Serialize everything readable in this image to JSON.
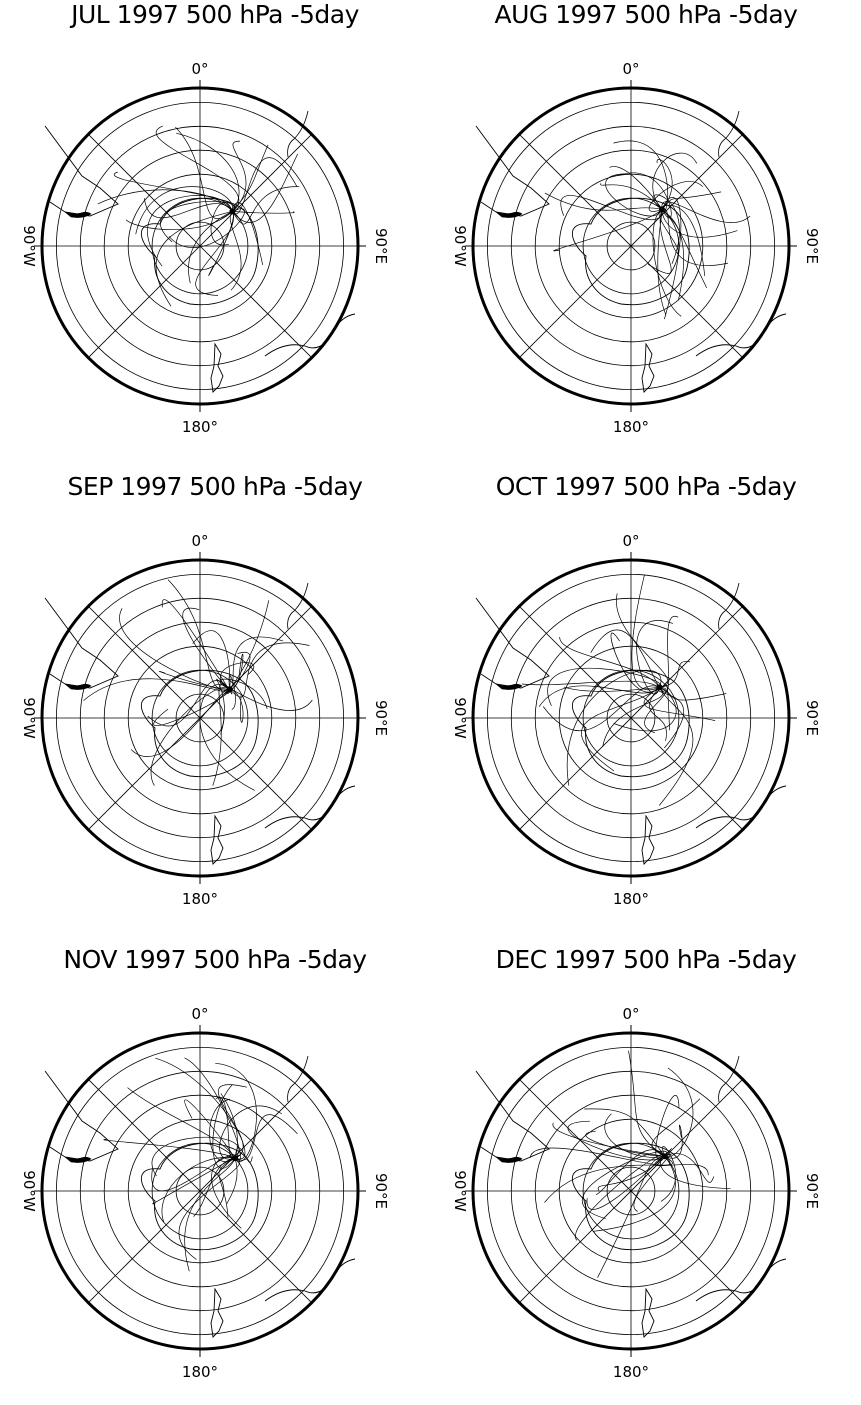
{
  "panels": [
    {
      "title": "JUL 1997 500 hPa -5day"
    },
    {
      "title": "AUG 1997 500 hPa -5day"
    },
    {
      "title": "SEP 1997 500 hPa -5day"
    },
    {
      "title": "OCT 1997 500 hPa -5day"
    },
    {
      "title": "NOV 1997 500 hPa -5day"
    },
    {
      "title": "DEC 1997 500 hPa -5day"
    }
  ],
  "map": {
    "projection": "south polar stereographic",
    "label_top": "0°",
    "label_bottom": "180°",
    "label_left": "90°W",
    "label_right": "90°E",
    "latitude_circles": 6,
    "meridian_spacing_deg": 45
  },
  "colors": {
    "ink": "#000000",
    "background": "#ffffff"
  }
}
